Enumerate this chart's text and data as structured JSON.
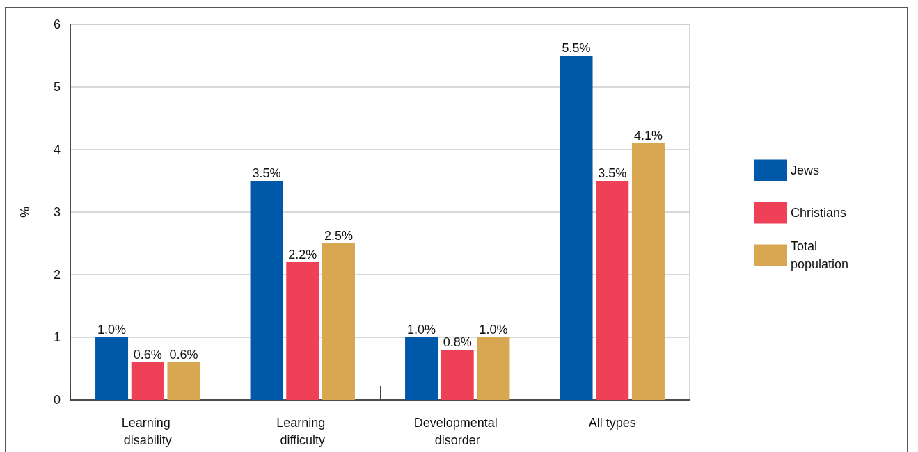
{
  "chart_data": {
    "type": "bar",
    "ylabel": "%",
    "categories": [
      "Learning disability",
      "Learning difficulty",
      "Developmental disorder",
      "All types"
    ],
    "series": [
      {
        "name": "Jews",
        "color": "#0058a8",
        "values": [
          1.0,
          3.5,
          1.0,
          5.5
        ],
        "value_labels": [
          "1.0%",
          "3.5%",
          "1.0%",
          "5.5%"
        ]
      },
      {
        "name": "Christians",
        "color": "#ee4056",
        "values": [
          0.6,
          2.2,
          0.8,
          3.5
        ],
        "value_labels": [
          "0.6%",
          "2.2%",
          "0.8%",
          "3.5%"
        ]
      },
      {
        "name": "Total population",
        "color": "#d8a752",
        "values": [
          0.6,
          2.5,
          1.0,
          4.1
        ],
        "value_labels": [
          "0.6%",
          "2.5%",
          "1.0%",
          "4.1%"
        ]
      }
    ],
    "ylim": [
      0,
      6
    ],
    "yticks": [
      0,
      1,
      2,
      3,
      4,
      5,
      6
    ],
    "grid": "y",
    "legend": "right"
  }
}
